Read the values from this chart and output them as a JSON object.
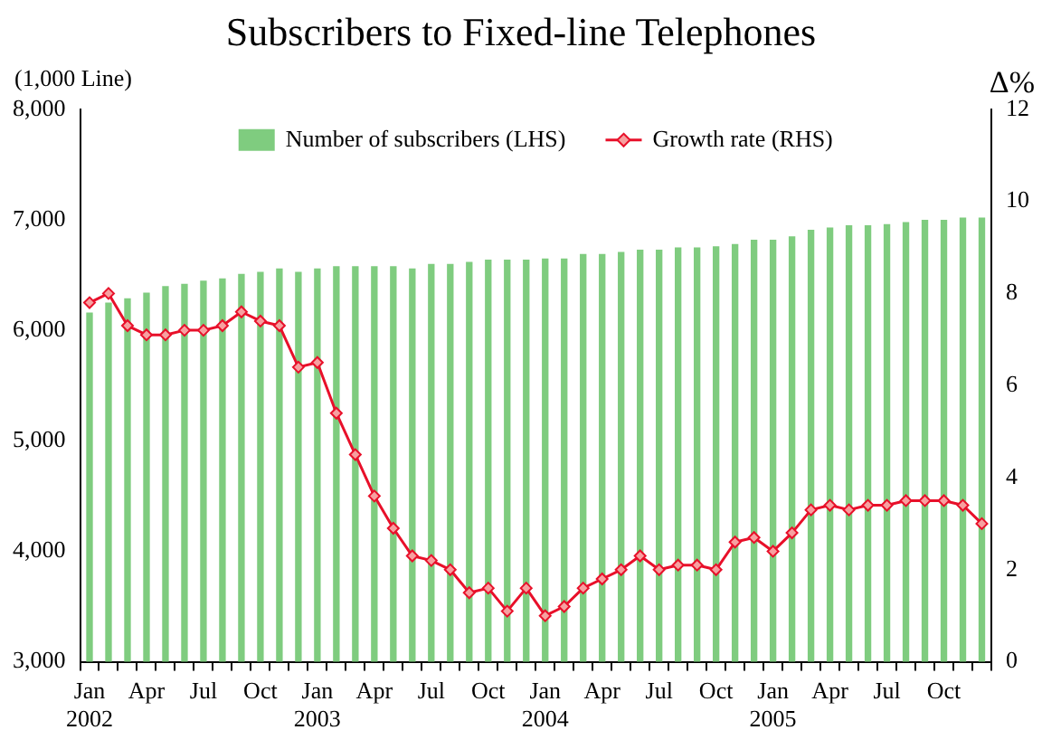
{
  "chart_data": {
    "type": "bar",
    "title": "Subscribers to Fixed-line Telephones",
    "ylabel": "(1,000 Line)",
    "y2label": "Δ%",
    "categories": [
      "Jan\n2002",
      null,
      null,
      "Apr",
      null,
      null,
      "Jul",
      null,
      null,
      "Oct",
      null,
      null,
      "Jan\n2003",
      null,
      null,
      "Apr",
      null,
      null,
      "Jul",
      null,
      null,
      "Oct",
      null,
      null,
      "Jan\n2004",
      null,
      null,
      "Apr",
      null,
      null,
      "Jul",
      null,
      null,
      "Oct",
      null,
      null,
      "Jan\n2005",
      null,
      null,
      "Apr",
      null,
      null,
      "Jul",
      null,
      null,
      "Oct",
      null,
      null
    ],
    "series": [
      {
        "name": "Number of subscribers (LHS)",
        "color": "#7fcc7f",
        "values": [
          6160,
          6250,
          6290,
          6340,
          6400,
          6420,
          6450,
          6470,
          6510,
          6530,
          6560,
          6530,
          6560,
          6580,
          6580,
          6580,
          6580,
          6560,
          6600,
          6600,
          6620,
          6640,
          6640,
          6640,
          6650,
          6650,
          6690,
          6690,
          6710,
          6730,
          6730,
          6750,
          6750,
          6760,
          6780,
          6820,
          6820,
          6850,
          6910,
          6930,
          6950,
          6950,
          6960,
          6980,
          7000,
          7000,
          7020,
          7020
        ]
      },
      {
        "name": "Growth rate (RHS)",
        "type": "line",
        "axis": "y2",
        "color": "#e8102a",
        "marker": "diamond",
        "values": [
          7.8,
          8.0,
          7.3,
          7.1,
          7.1,
          7.2,
          7.2,
          7.3,
          7.6,
          7.4,
          7.3,
          6.4,
          6.5,
          5.4,
          4.5,
          3.6,
          2.9,
          2.3,
          2.2,
          2.0,
          1.5,
          1.6,
          1.1,
          1.6,
          1.0,
          1.2,
          1.6,
          1.8,
          2.0,
          2.3,
          2.0,
          2.1,
          2.1,
          2.0,
          2.6,
          2.7,
          2.4,
          2.8,
          3.3,
          3.4,
          3.3,
          3.4,
          3.4,
          3.5,
          3.5,
          3.5,
          3.4,
          3.0
        ]
      }
    ],
    "ylim": [
      3000,
      8000
    ],
    "yticks": [
      {
        "value": 3000,
        "label": "3,000"
      },
      {
        "value": 4000,
        "label": "4,000"
      },
      {
        "value": 5000,
        "label": "5,000"
      },
      {
        "value": 6000,
        "label": "6,000"
      },
      {
        "value": 7000,
        "label": "7,000"
      },
      {
        "value": 8000,
        "label": "8,000"
      }
    ],
    "y2lim": [
      0,
      12
    ],
    "y2ticks": [
      0,
      2,
      4,
      6,
      8,
      10,
      12
    ],
    "legend": "top",
    "grid": false
  }
}
